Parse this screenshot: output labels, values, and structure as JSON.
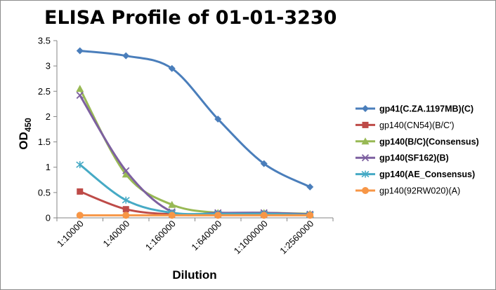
{
  "chart_data": {
    "type": "line",
    "title": "ELISA Profile of 01-01-3230",
    "xlabel": "Dilution",
    "ylabel": "OD",
    "ylabel_subscript": "450",
    "categories": [
      "1:10000",
      "1:40000",
      "1:160000",
      "1:640000",
      "1:1000000",
      "1:2560000"
    ],
    "ylim": [
      0,
      3.5
    ],
    "yticks": [
      "0",
      "0.5",
      "1",
      "1.5",
      "2",
      "2.5",
      "3",
      "3.5"
    ],
    "grid": false,
    "legend_position": "right",
    "series": [
      {
        "name": "gp41(C.ZA.1197MB)(C)",
        "color": "#4A7EBB",
        "marker": "diamond",
        "bold": true,
        "values": [
          3.3,
          3.2,
          2.95,
          1.95,
          1.07,
          0.61
        ]
      },
      {
        "name": "gp140(CN54)(B/C')",
        "color": "#BE4B48",
        "marker": "square",
        "bold": false,
        "values": [
          0.52,
          0.17,
          0.07,
          0.07,
          0.07,
          0.06
        ]
      },
      {
        "name": "gp140(B/C)(Consensus)",
        "color": "#98B954",
        "marker": "triangle",
        "bold": true,
        "values": [
          2.55,
          0.86,
          0.26,
          0.1,
          0.1,
          0.08
        ]
      },
      {
        "name": "gp140(SF162)(B)",
        "color": "#7D60A0",
        "marker": "x",
        "bold": true,
        "values": [
          2.42,
          0.93,
          0.12,
          0.1,
          0.1,
          0.07
        ]
      },
      {
        "name": "gp140(AE_Consensus)",
        "color": "#46AAC5",
        "marker": "asterisk",
        "bold": true,
        "values": [
          1.05,
          0.35,
          0.1,
          0.08,
          0.08,
          0.06
        ]
      },
      {
        "name": "gp140(92RW020)(A)",
        "color": "#F79646",
        "marker": "circle",
        "bold": false,
        "values": [
          0.05,
          0.05,
          0.05,
          0.05,
          0.05,
          0.05
        ]
      }
    ]
  }
}
